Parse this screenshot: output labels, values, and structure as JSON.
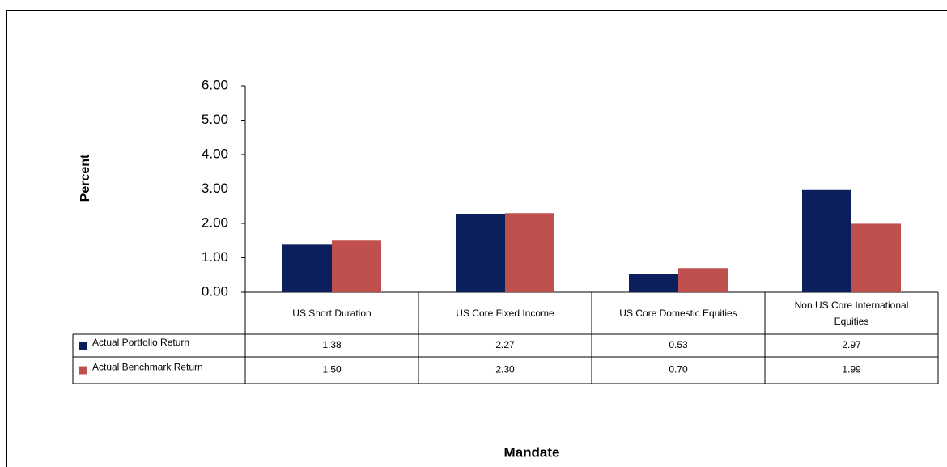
{
  "chart_data": {
    "type": "bar",
    "y_label": "Percent",
    "x_label": "Mandate",
    "categories": [
      "US Short Duration",
      "US Core Fixed Income",
      "US Core Domestic Equities",
      "Non US Core International Equities"
    ],
    "series": [
      {
        "name": "Actual Portfolio Return",
        "color": "#0a1f5c",
        "values": [
          1.38,
          2.27,
          0.53,
          2.97
        ],
        "value_labels": [
          "1.38",
          "2.27",
          "0.53",
          "2.97"
        ]
      },
      {
        "name": "Actual Benchmark Return",
        "color": "#c0504d",
        "values": [
          1.5,
          2.3,
          0.7,
          1.99
        ],
        "value_labels": [
          "1.50",
          "2.30",
          "0.70",
          "1.99"
        ]
      }
    ],
    "ylim": [
      0,
      6
    ],
    "yticks": [
      {
        "value": 0,
        "label": "0.00"
      },
      {
        "value": 1,
        "label": "1.00"
      },
      {
        "value": 2,
        "label": "2.00"
      },
      {
        "value": 3,
        "label": "3.00"
      },
      {
        "value": 4,
        "label": "4.00"
      },
      {
        "value": 5,
        "label": "5.00"
      },
      {
        "value": 6,
        "label": "6.00"
      }
    ],
    "grid": false
  }
}
